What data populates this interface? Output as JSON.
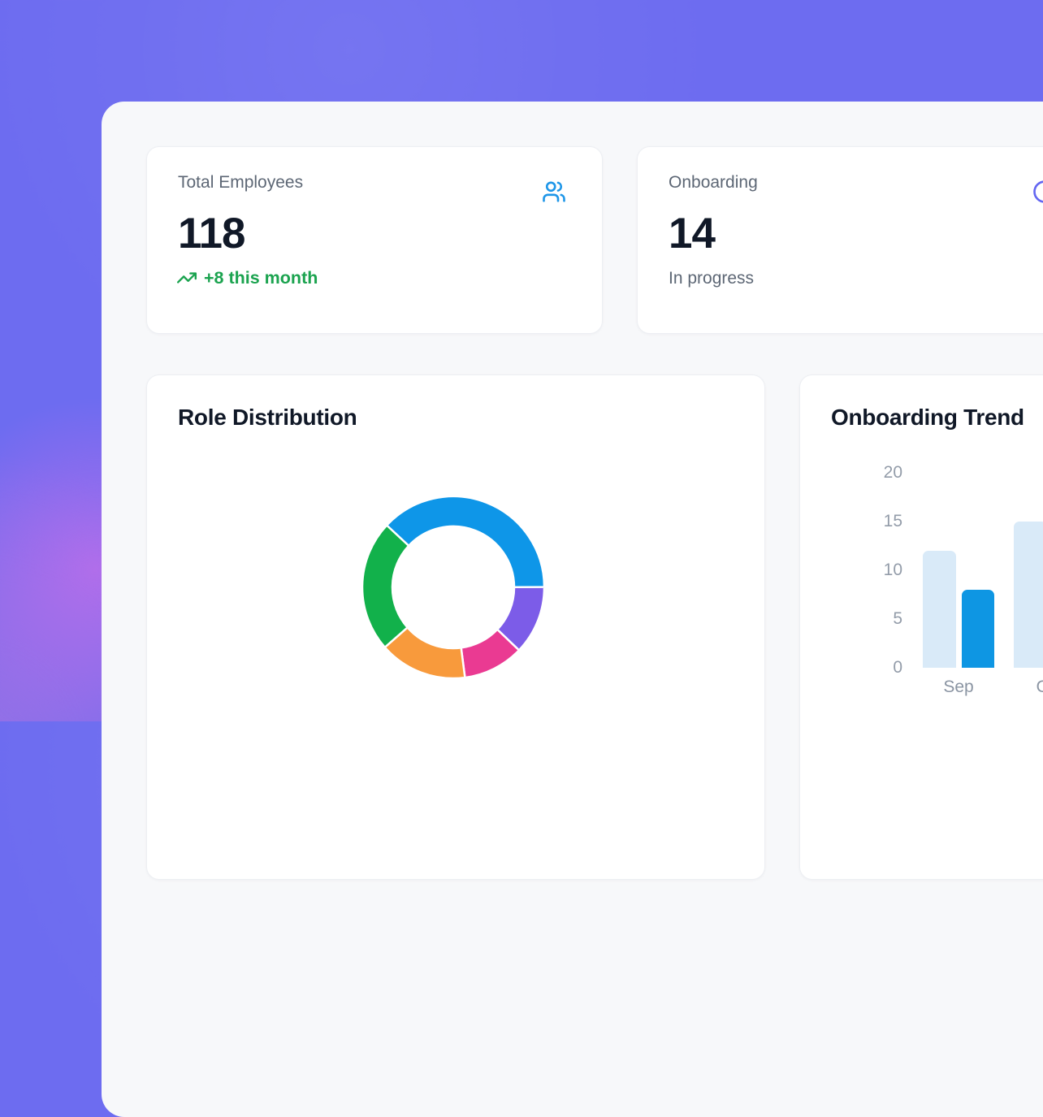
{
  "theme": {
    "background_purple": "#6d6cf0",
    "panel_bg": "#f7f8fa",
    "card_bg": "#ffffff",
    "text_dark": "#101827",
    "text_gray": "#5d6775",
    "tick_gray": "#939ca9",
    "green": "#1ba34f",
    "blue_icon": "#1e96e8",
    "indigo_icon": "#6366f1"
  },
  "stat_cards": [
    {
      "label": "Total Employees",
      "value": "118",
      "delta": "+8 this month",
      "icon": "users-icon",
      "icon_color": "#1e96e8",
      "delta_color": "#1ba34f"
    },
    {
      "label": "Onboarding",
      "value": "14",
      "sub": "In progress",
      "icon": "clock-icon",
      "icon_color": "#6366f1"
    }
  ],
  "chart_data": [
    {
      "type": "pie",
      "variant": "donut",
      "title": "Role Distribution",
      "legend": "not visible in screenshot",
      "rotation_deg": -47,
      "outer_radius": 112,
      "inner_radius": 75,
      "segments": [
        {
          "name": "blue-segment",
          "color": "#0e96e8",
          "pct": 38.0
        },
        {
          "name": "purple-segment",
          "color": "#7c5ce8",
          "pct": 12.2
        },
        {
          "name": "pink-segment",
          "color": "#ea3a92",
          "pct": 10.8
        },
        {
          "name": "orange-segment",
          "color": "#f89a3c",
          "pct": 15.6
        },
        {
          "name": "green-segment",
          "color": "#12b14b",
          "pct": 23.4
        }
      ]
    },
    {
      "type": "bar",
      "title": "Onboarding Trend",
      "categories": [
        "Sep",
        "Oct"
      ],
      "series": [
        {
          "name": "light-blue-series",
          "color": "#d9eaf8",
          "values": [
            12,
            15
          ]
        },
        {
          "name": "dark-blue-series",
          "color": "#0e96e3",
          "values": [
            8,
            null
          ]
        }
      ],
      "yticks": [
        0,
        5,
        10,
        15,
        20
      ],
      "ylim": [
        0,
        20
      ],
      "grid": false,
      "xlabel": "",
      "ylabel": ""
    }
  ]
}
